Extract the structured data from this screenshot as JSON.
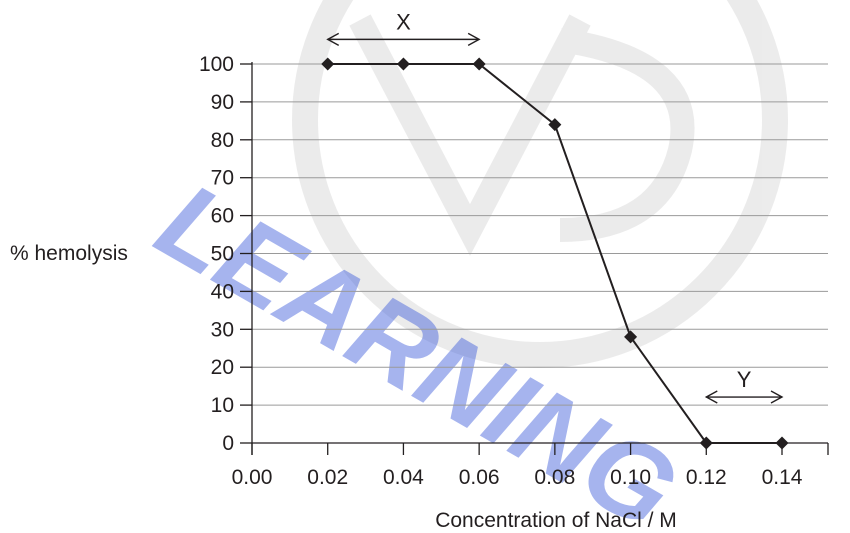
{
  "watermark": {
    "text": "LEARNING",
    "color": "#3b5bdb"
  },
  "chart_data": {
    "type": "line",
    "title": "",
    "xlabel": "Concentration of NaCl / M",
    "ylabel": "% hemolysis",
    "xlim": [
      0.0,
      0.15
    ],
    "ylim": [
      0,
      100
    ],
    "x_ticks": [
      "0.00",
      "0.02",
      "0.04",
      "0.06",
      "0.08",
      "0.10",
      "0.12",
      "0.14"
    ],
    "y_ticks": [
      "0",
      "10",
      "20",
      "30",
      "40",
      "50",
      "60",
      "70",
      "80",
      "90",
      "100"
    ],
    "grid": "horizontal",
    "series": [
      {
        "x": [
          0.02,
          0.04,
          0.06,
          0.08,
          0.1,
          0.12,
          0.14
        ],
        "y": [
          100,
          100,
          100,
          84,
          28,
          0,
          0
        ],
        "color": "#231f20",
        "marker": "diamond"
      }
    ],
    "annotations": [
      {
        "label": "X",
        "x_from": 0.02,
        "x_to": 0.06,
        "y": 106.5
      },
      {
        "label": "Y",
        "x_from": 0.12,
        "x_to": 0.14,
        "y": 5
      }
    ]
  }
}
